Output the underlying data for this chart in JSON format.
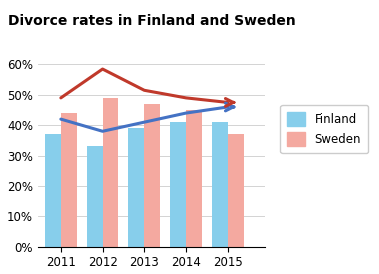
{
  "title": "Divorce rates in Finland and Sweden",
  "years": [
    2011,
    2012,
    2013,
    2014,
    2015
  ],
  "finland_bars": [
    0.37,
    0.33,
    0.39,
    0.41,
    0.41
  ],
  "sweden_bars": [
    0.44,
    0.49,
    0.47,
    0.45,
    0.37
  ],
  "finland_line": [
    0.42,
    0.38,
    0.41,
    0.44,
    0.46
  ],
  "sweden_line": [
    0.49,
    0.585,
    0.515,
    0.49,
    0.475
  ],
  "finland_bar_color": "#87CEEB",
  "sweden_bar_color": "#F4A9A0",
  "finland_line_color": "#4472C4",
  "sweden_line_color": "#C0392B",
  "ylim": [
    0,
    0.65
  ],
  "yticks": [
    0,
    0.1,
    0.2,
    0.3,
    0.4,
    0.5,
    0.6
  ],
  "ytick_labels": [
    "0%",
    "10%",
    "20%",
    "30%",
    "40%",
    "50%",
    "60%"
  ],
  "bar_width": 0.38,
  "legend_finland": "Finland",
  "legend_sweden": "Sweden"
}
